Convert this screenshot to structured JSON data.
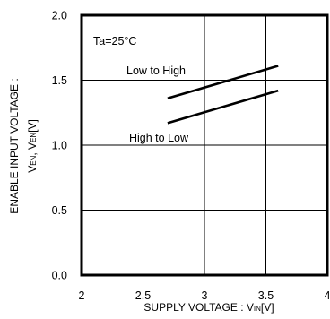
{
  "chart_data": {
    "type": "line",
    "annotation": "Ta=25°C",
    "xlabel": {
      "main": "SUPPLY VOLTAGE : V",
      "sub": "IN",
      "unit": "[V]"
    },
    "ylabel": {
      "line1": "ENABLE INPUT VOLTAGE :",
      "main": "V",
      "sub1": "EN",
      "mid": ", V",
      "sub2": "EN",
      "unit": "[V]"
    },
    "xlim": [
      2,
      4
    ],
    "ylim": [
      0,
      2
    ],
    "xticks": [
      "2",
      "2.5",
      "3",
      "3.5",
      "4"
    ],
    "xtick_values": [
      2,
      2.5,
      3,
      3.5,
      4
    ],
    "yticks": [
      "0.0",
      "0.5",
      "1.0",
      "1.5",
      "2.0"
    ],
    "ytick_values": [
      0,
      0.5,
      1.0,
      1.5,
      2.0
    ],
    "grid": true,
    "series": [
      {
        "name": "Low to High",
        "x": [
          2.7,
          3.6
        ],
        "y": [
          1.36,
          1.61
        ]
      },
      {
        "name": "High to Low",
        "x": [
          2.7,
          3.6
        ],
        "y": [
          1.17,
          1.42
        ]
      }
    ]
  }
}
